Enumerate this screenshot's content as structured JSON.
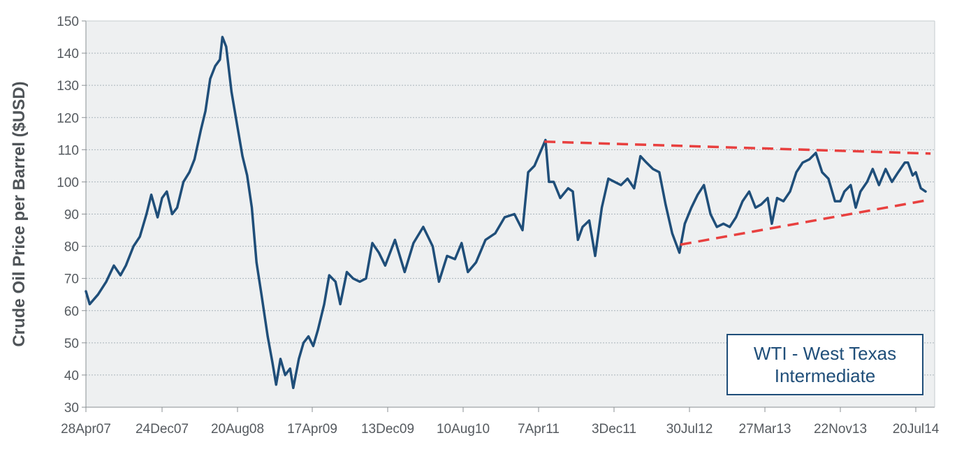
{
  "chart_data": {
    "type": "line",
    "title": "",
    "xlabel": "",
    "ylabel": "Crude Oil Price per Barrel ($USD)",
    "ylim": [
      30,
      150
    ],
    "yticks": [
      30,
      40,
      50,
      60,
      70,
      80,
      90,
      100,
      110,
      120,
      130,
      140,
      150
    ],
    "xlim": [
      "2007-04-28",
      "2014-09-05"
    ],
    "xtick_labels": [
      {
        "label": "28Apr07",
        "date": "2007-04-28"
      },
      {
        "label": "24Dec07",
        "date": "2007-12-24"
      },
      {
        "label": "20Aug08",
        "date": "2008-08-20"
      },
      {
        "label": "17Apr09",
        "date": "2009-04-17"
      },
      {
        "label": "13Dec09",
        "date": "2009-12-13"
      },
      {
        "label": "10Aug10",
        "date": "2010-08-10"
      },
      {
        "label": "7Apr11",
        "date": "2011-04-07"
      },
      {
        "label": "3Dec11",
        "date": "2011-12-03"
      },
      {
        "label": "30Jul12",
        "date": "2012-07-30"
      },
      {
        "label": "27Mar13",
        "date": "2013-03-27"
      },
      {
        "label": "22Nov13",
        "date": "2013-11-22"
      },
      {
        "label": "20Jul14",
        "date": "2014-07-20"
      }
    ],
    "grid": true,
    "legend": {
      "text_line1": "WTI - West Texas",
      "text_line2": "Intermediate",
      "position": "bottom-right"
    },
    "colors": {
      "series": "#1f4e79",
      "trendline": "#e8403f",
      "plot_bg": "#eef0f1",
      "grid": "#a9b4bb"
    },
    "series": [
      {
        "name": "WTI - West Texas Intermediate",
        "points": [
          [
            "2007-04-28",
            66
          ],
          [
            "2007-05-10",
            62
          ],
          [
            "2007-06-05",
            65
          ],
          [
            "2007-07-01",
            69
          ],
          [
            "2007-07-25",
            74
          ],
          [
            "2007-08-15",
            71
          ],
          [
            "2007-09-01",
            74
          ],
          [
            "2007-09-25",
            80
          ],
          [
            "2007-10-15",
            83
          ],
          [
            "2007-11-05",
            90
          ],
          [
            "2007-11-20",
            96
          ],
          [
            "2007-12-10",
            89
          ],
          [
            "2007-12-24",
            95
          ],
          [
            "2008-01-08",
            97
          ],
          [
            "2008-01-25",
            90
          ],
          [
            "2008-02-10",
            92
          ],
          [
            "2008-03-01",
            100
          ],
          [
            "2008-03-20",
            103
          ],
          [
            "2008-04-05",
            107
          ],
          [
            "2008-04-25",
            116
          ],
          [
            "2008-05-10",
            122
          ],
          [
            "2008-05-25",
            132
          ],
          [
            "2008-06-10",
            136
          ],
          [
            "2008-06-25",
            138
          ],
          [
            "2008-07-03",
            145
          ],
          [
            "2008-07-15",
            142
          ],
          [
            "2008-08-01",
            128
          ],
          [
            "2008-08-20",
            117
          ],
          [
            "2008-09-05",
            108
          ],
          [
            "2008-09-20",
            102
          ],
          [
            "2008-10-05",
            92
          ],
          [
            "2008-10-20",
            75
          ],
          [
            "2008-11-05",
            65
          ],
          [
            "2008-11-25",
            52
          ],
          [
            "2008-12-10",
            44
          ],
          [
            "2008-12-22",
            37
          ],
          [
            "2009-01-05",
            45
          ],
          [
            "2009-01-20",
            40
          ],
          [
            "2009-02-05",
            42
          ],
          [
            "2009-02-15",
            36
          ],
          [
            "2009-03-05",
            45
          ],
          [
            "2009-03-20",
            50
          ],
          [
            "2009-04-05",
            52
          ],
          [
            "2009-04-20",
            49
          ],
          [
            "2009-05-05",
            54
          ],
          [
            "2009-05-25",
            62
          ],
          [
            "2009-06-10",
            71
          ],
          [
            "2009-06-30",
            69
          ],
          [
            "2009-07-15",
            62
          ],
          [
            "2009-08-05",
            72
          ],
          [
            "2009-08-25",
            70
          ],
          [
            "2009-09-15",
            69
          ],
          [
            "2009-10-05",
            70
          ],
          [
            "2009-10-25",
            81
          ],
          [
            "2009-11-15",
            78
          ],
          [
            "2009-12-05",
            74
          ],
          [
            "2010-01-05",
            82
          ],
          [
            "2010-02-05",
            72
          ],
          [
            "2010-03-05",
            81
          ],
          [
            "2010-04-05",
            86
          ],
          [
            "2010-05-05",
            80
          ],
          [
            "2010-05-25",
            69
          ],
          [
            "2010-06-20",
            77
          ],
          [
            "2010-07-15",
            76
          ],
          [
            "2010-08-05",
            81
          ],
          [
            "2010-08-25",
            72
          ],
          [
            "2010-09-20",
            75
          ],
          [
            "2010-10-20",
            82
          ],
          [
            "2010-11-20",
            84
          ],
          [
            "2010-12-20",
            89
          ],
          [
            "2011-01-20",
            90
          ],
          [
            "2011-02-15",
            85
          ],
          [
            "2011-03-05",
            103
          ],
          [
            "2011-03-25",
            105
          ],
          [
            "2011-04-07",
            108
          ],
          [
            "2011-04-29",
            113
          ],
          [
            "2011-05-10",
            100
          ],
          [
            "2011-05-25",
            100
          ],
          [
            "2011-06-15",
            95
          ],
          [
            "2011-07-10",
            98
          ],
          [
            "2011-07-25",
            97
          ],
          [
            "2011-08-10",
            82
          ],
          [
            "2011-08-25",
            86
          ],
          [
            "2011-09-15",
            88
          ],
          [
            "2011-10-04",
            77
          ],
          [
            "2011-10-25",
            92
          ],
          [
            "2011-11-15",
            101
          ],
          [
            "2011-12-05",
            100
          ],
          [
            "2011-12-25",
            99
          ],
          [
            "2012-01-15",
            101
          ],
          [
            "2012-02-05",
            98
          ],
          [
            "2012-02-25",
            108
          ],
          [
            "2012-03-15",
            106
          ],
          [
            "2012-04-05",
            104
          ],
          [
            "2012-04-25",
            103
          ],
          [
            "2012-05-15",
            93
          ],
          [
            "2012-06-05",
            84
          ],
          [
            "2012-06-28",
            78
          ],
          [
            "2012-07-15",
            87
          ],
          [
            "2012-08-05",
            92
          ],
          [
            "2012-08-25",
            96
          ],
          [
            "2012-09-14",
            99
          ],
          [
            "2012-10-05",
            90
          ],
          [
            "2012-10-25",
            86
          ],
          [
            "2012-11-15",
            87
          ],
          [
            "2012-12-05",
            86
          ],
          [
            "2012-12-25",
            89
          ],
          [
            "2013-01-15",
            94
          ],
          [
            "2013-02-05",
            97
          ],
          [
            "2013-02-25",
            92
          ],
          [
            "2013-03-15",
            93
          ],
          [
            "2013-04-05",
            95
          ],
          [
            "2013-04-18",
            87
          ],
          [
            "2013-05-05",
            95
          ],
          [
            "2013-05-25",
            94
          ],
          [
            "2013-06-15",
            97
          ],
          [
            "2013-07-05",
            103
          ],
          [
            "2013-07-25",
            106
          ],
          [
            "2013-08-15",
            107
          ],
          [
            "2013-09-05",
            109
          ],
          [
            "2013-09-25",
            103
          ],
          [
            "2013-10-15",
            101
          ],
          [
            "2013-11-05",
            94
          ],
          [
            "2013-11-22",
            94
          ],
          [
            "2013-12-05",
            97
          ],
          [
            "2013-12-25",
            99
          ],
          [
            "2014-01-10",
            92
          ],
          [
            "2014-01-25",
            97
          ],
          [
            "2014-02-15",
            100
          ],
          [
            "2014-03-05",
            104
          ],
          [
            "2014-03-25",
            99
          ],
          [
            "2014-04-15",
            104
          ],
          [
            "2014-05-05",
            100
          ],
          [
            "2014-05-25",
            103
          ],
          [
            "2014-06-15",
            106
          ],
          [
            "2014-06-25",
            106
          ],
          [
            "2014-07-10",
            102
          ],
          [
            "2014-07-20",
            103
          ],
          [
            "2014-08-05",
            98
          ],
          [
            "2014-08-20",
            97
          ]
        ]
      }
    ],
    "annotations": [
      {
        "type": "dashed-trendline",
        "from": [
          "2011-04-25",
          112.5
        ],
        "to": [
          "2014-09-05",
          108.8
        ]
      },
      {
        "type": "dashed-trendline",
        "from": [
          "2012-07-01",
          80.5
        ],
        "to": [
          "2014-09-05",
          94.5
        ]
      }
    ]
  }
}
